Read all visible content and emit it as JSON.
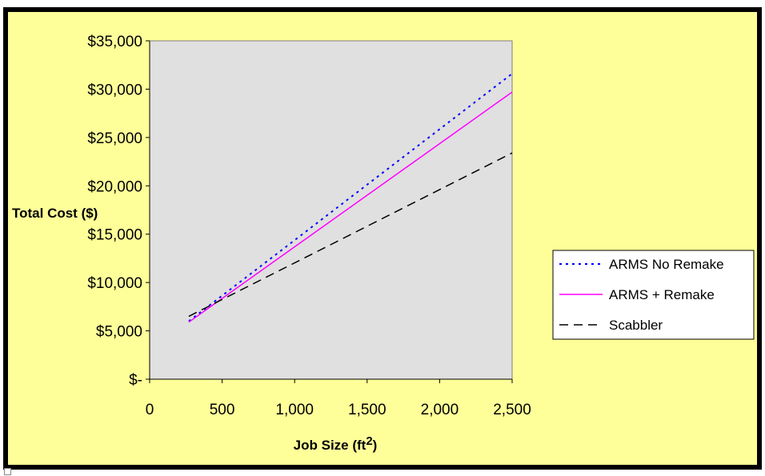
{
  "chart_data": {
    "type": "line",
    "xlabel": "Job Size (ft",
    "xlabel_sup": "2",
    "xlabel_close": ")",
    "ylabel": "Total Cost ($)",
    "xlim": [
      0,
      2500
    ],
    "ylim": [
      0,
      35000
    ],
    "x_ticks": [
      0,
      500,
      1000,
      1500,
      2000,
      2500
    ],
    "x_tick_labels": [
      "0",
      "500",
      "1,000",
      "1,500",
      "2,000",
      "2,500"
    ],
    "y_ticks": [
      0,
      5000,
      10000,
      15000,
      20000,
      25000,
      30000,
      35000
    ],
    "y_tick_labels": [
      "$-",
      "$5,000",
      "$10,000",
      "$15,000",
      "$20,000",
      "$25,000",
      "$30,000",
      "$35,000"
    ],
    "grid": false,
    "legend_position": "right",
    "series": [
      {
        "name": "ARMS No Remake",
        "x": [
          270,
          2500
        ],
        "y": [
          6000,
          31600
        ],
        "color": "#0000ff",
        "style": "dotted"
      },
      {
        "name": "ARMS + Remake",
        "x": [
          270,
          2500
        ],
        "y": [
          5900,
          29700
        ],
        "color": "#ff00ff",
        "style": "solid"
      },
      {
        "name": "Scabbler",
        "x": [
          270,
          2500
        ],
        "y": [
          6500,
          23400
        ],
        "color": "#000000",
        "style": "dashed"
      }
    ],
    "colors": {
      "plot_background": "#e0e0e0",
      "chart_background": "#ffff99",
      "frame": "#000000"
    }
  }
}
